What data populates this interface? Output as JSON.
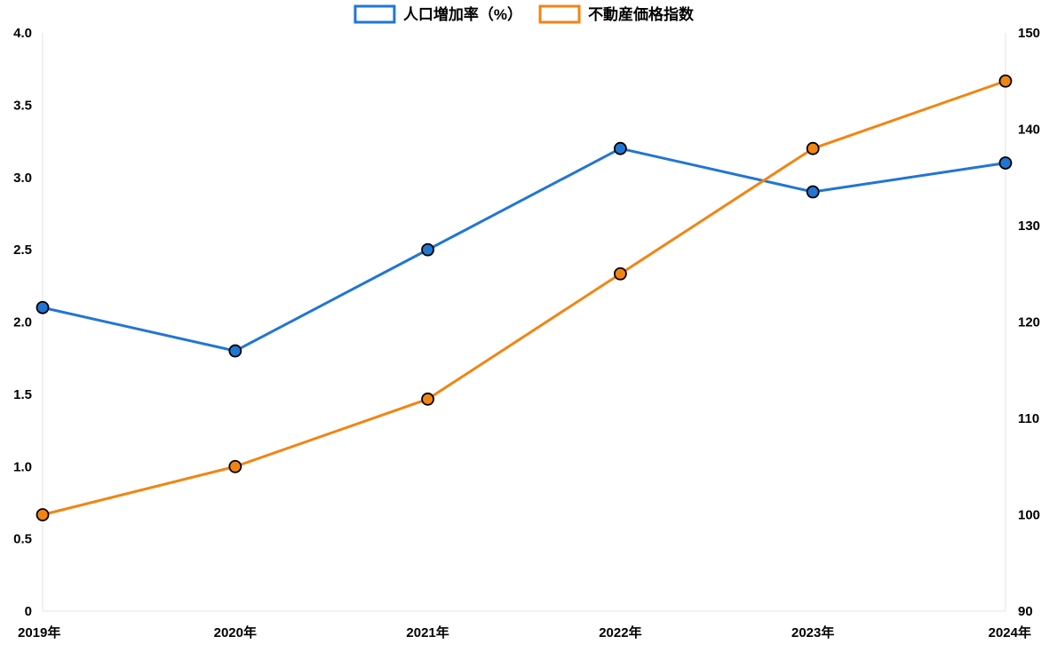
{
  "chart_data": {
    "type": "line",
    "categories": [
      "2019年",
      "2020年",
      "2021年",
      "2022年",
      "2023年",
      "2024年"
    ],
    "series": [
      {
        "name": "人口増加率（%）",
        "axis": "left",
        "color": "#2176d2",
        "values": [
          2.1,
          1.8,
          2.5,
          3.2,
          2.9,
          3.1
        ]
      },
      {
        "name": "不動産価格指数",
        "axis": "right",
        "color": "#f28512",
        "values": [
          100,
          105,
          112,
          125,
          138,
          145
        ]
      }
    ],
    "y_left": {
      "ylim": [
        0,
        4.0
      ],
      "ticks": [
        "0",
        "0.5",
        "1.0",
        "1.5",
        "2.0",
        "2.5",
        "3.0",
        "3.5",
        "4.0"
      ]
    },
    "y_right": {
      "ylim": [
        90,
        150
      ],
      "ticks": [
        "90",
        "100",
        "110",
        "120",
        "130",
        "140",
        "150"
      ]
    },
    "legend_position": "top-center",
    "grid": false
  }
}
